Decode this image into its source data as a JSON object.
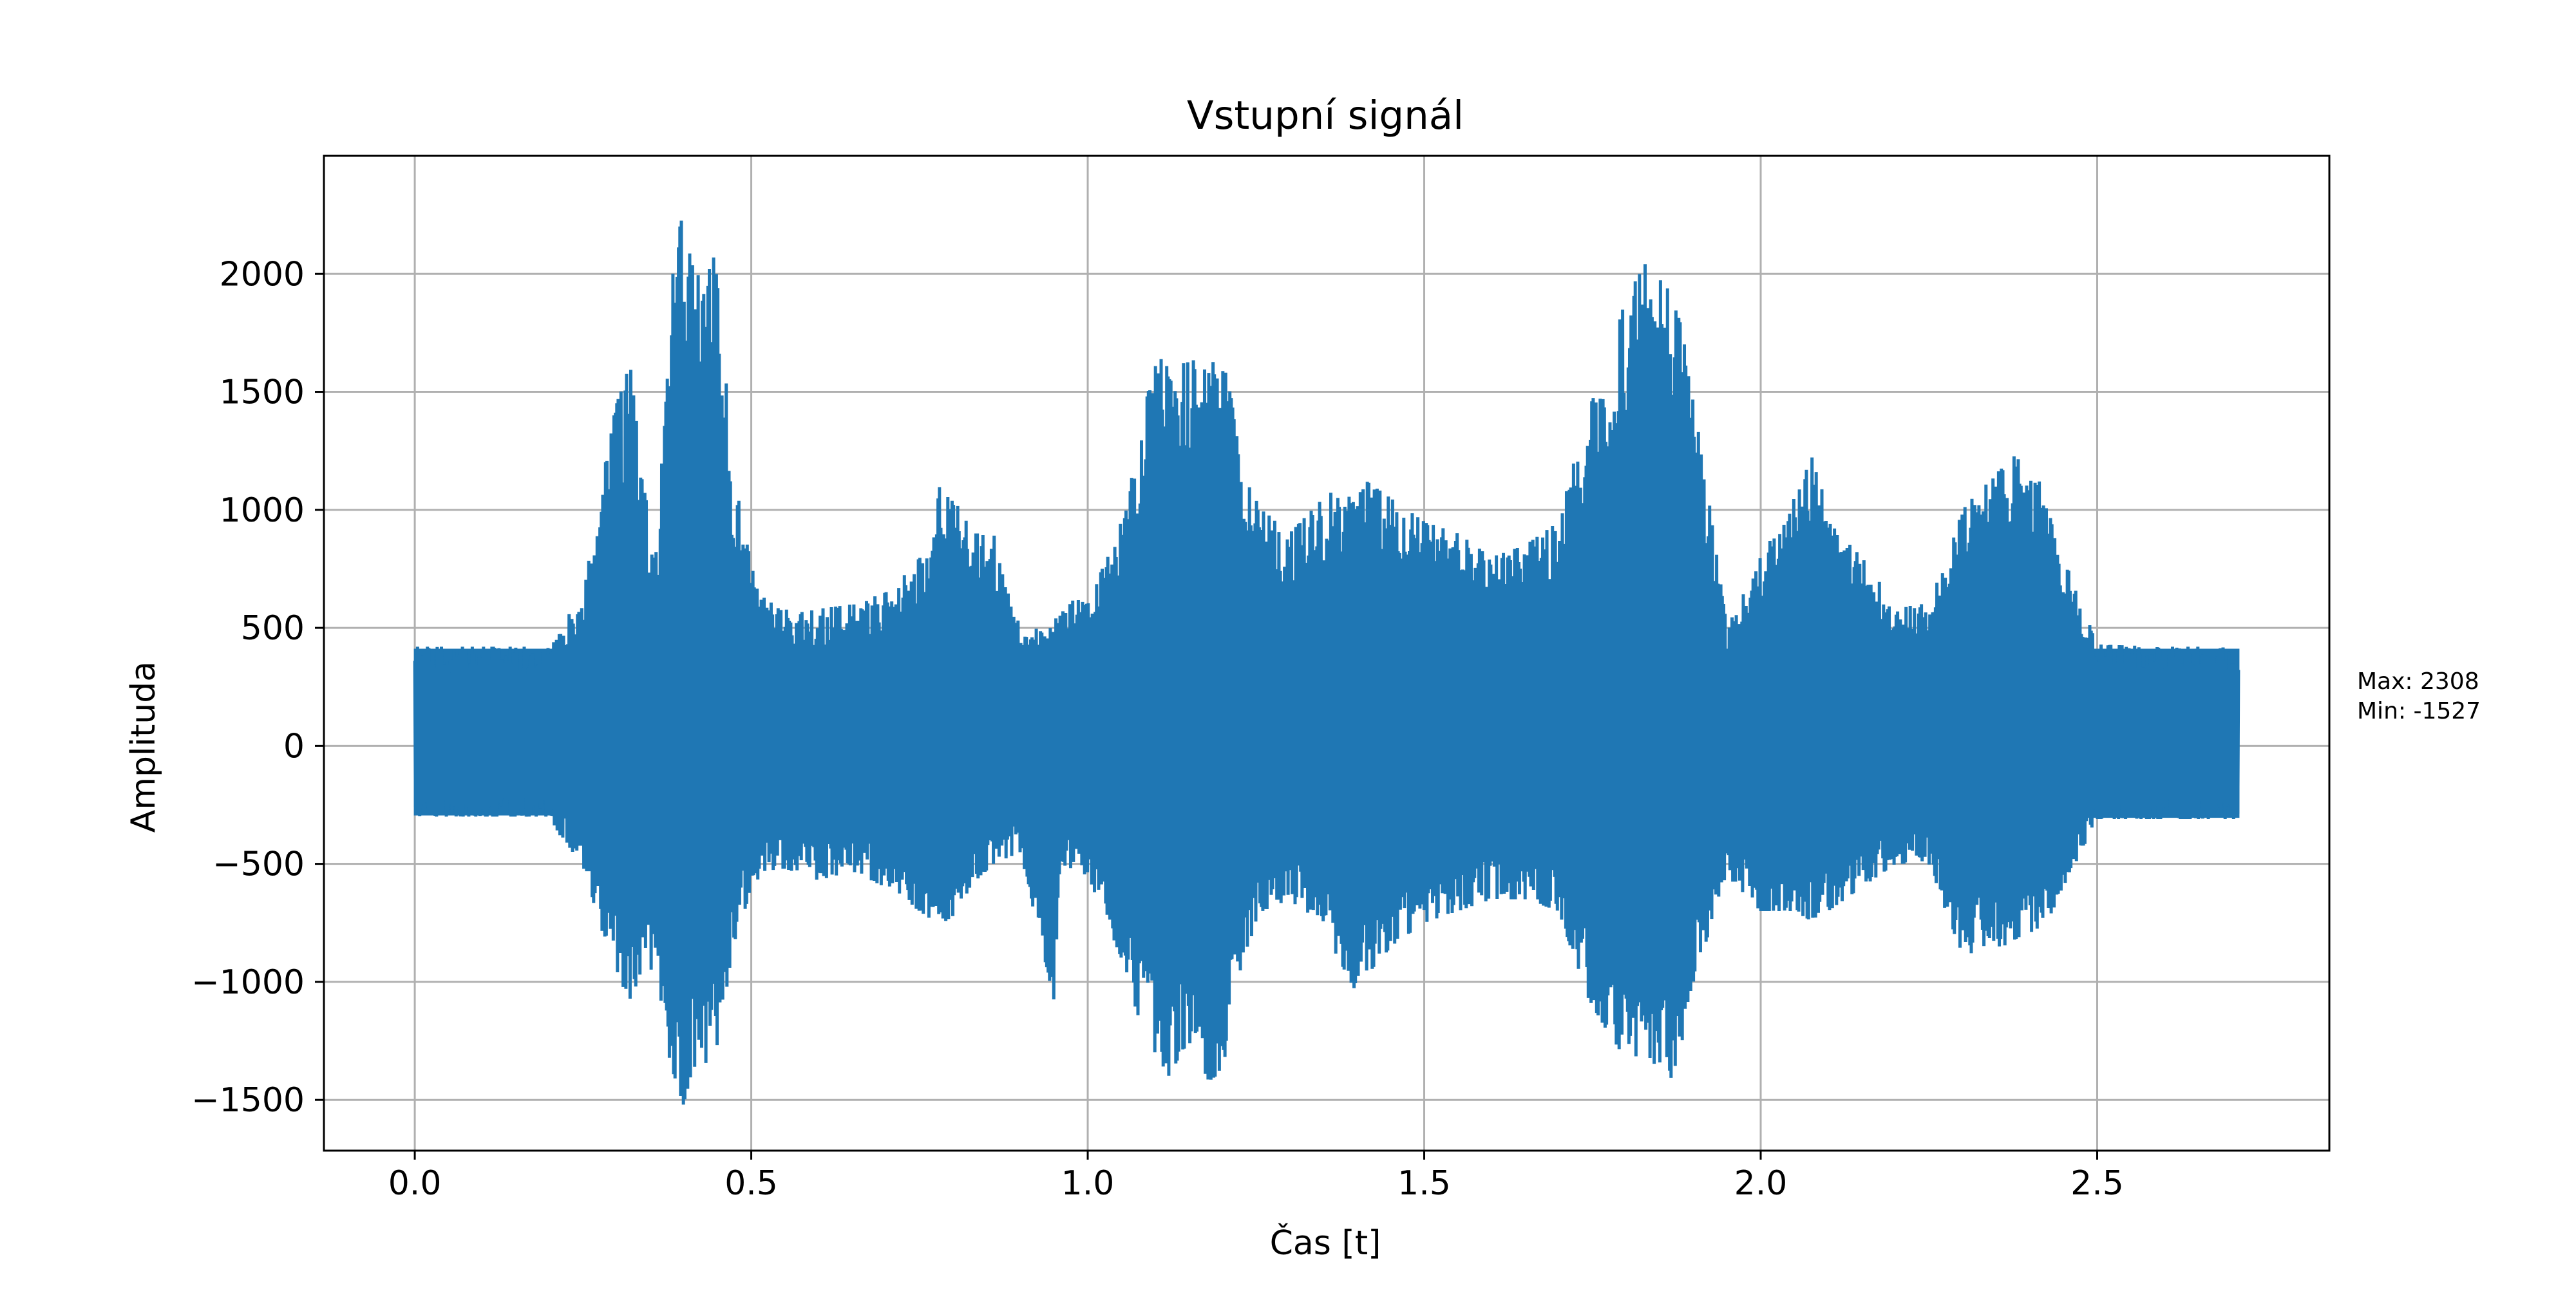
{
  "chart_data": {
    "type": "line",
    "title": "Vstupní signál",
    "xlabel": "Čas [t]",
    "ylabel": "Amplituda",
    "xlim": [
      -0.135,
      2.845
    ],
    "ylim": [
      -1715,
      2500
    ],
    "xticks": [
      0.0,
      0.5,
      1.0,
      1.5,
      2.0,
      2.5
    ],
    "xtick_labels": [
      "0.0",
      "0.5",
      "1.0",
      "1.5",
      "2.0",
      "2.5"
    ],
    "yticks": [
      -1500,
      -1000,
      -500,
      0,
      500,
      1000,
      1500,
      2000
    ],
    "ytick_labels": [
      "−1500",
      "−1000",
      "−500",
      "0",
      "500",
      "1000",
      "1500",
      "2000"
    ],
    "grid": true,
    "line_color": "#1f77b4",
    "series": [
      {
        "x_range": [
          0.0,
          2.71
        ],
        "envelope": {
          "t": [
            0.0,
            0.2,
            0.22,
            0.25,
            0.28,
            0.3,
            0.32,
            0.34,
            0.36,
            0.38,
            0.4,
            0.41,
            0.43,
            0.45,
            0.47,
            0.5,
            0.52,
            0.55,
            0.6,
            0.65,
            0.7,
            0.75,
            0.78,
            0.8,
            0.83,
            0.86,
            0.9,
            0.95,
            0.96,
            1.0,
            1.05,
            1.08,
            1.1,
            1.12,
            1.15,
            1.18,
            1.2,
            1.23,
            1.26,
            1.3,
            1.35,
            1.4,
            1.45,
            1.5,
            1.55,
            1.6,
            1.65,
            1.7,
            1.74,
            1.77,
            1.8,
            1.83,
            1.86,
            1.88,
            1.9,
            1.95,
            2.0,
            2.05,
            2.08,
            2.1,
            2.15,
            2.2,
            2.25,
            2.3,
            2.33,
            2.36,
            2.39,
            2.42,
            2.45,
            2.5,
            2.6,
            2.71
          ],
          "max": [
            420,
            420,
            530,
            620,
            1200,
            1450,
            1620,
            1100,
            800,
            1950,
            2308,
            2050,
            1950,
            2130,
            1200,
            780,
            620,
            580,
            580,
            600,
            650,
            800,
            1100,
            1050,
            900,
            900,
            500,
            500,
            650,
            600,
            950,
            1350,
            1670,
            1600,
            1650,
            1580,
            1730,
            1150,
            1000,
            900,
            1050,
            1150,
            1050,
            950,
            900,
            800,
            850,
            950,
            1400,
            1600,
            1900,
            2050,
            1950,
            1800,
            1500,
            500,
            800,
            1050,
            1250,
            950,
            800,
            600,
            600,
            1000,
            1100,
            1260,
            1200,
            1100,
            800,
            430,
            420,
            420
          ],
          "min": [
            -300,
            -300,
            -400,
            -520,
            -800,
            -950,
            -1100,
            -920,
            -1000,
            -1350,
            -1527,
            -1400,
            -1350,
            -1300,
            -900,
            -600,
            -530,
            -520,
            -570,
            -530,
            -600,
            -700,
            -760,
            -720,
            -580,
            -500,
            -450,
            -1080,
            -500,
            -550,
            -900,
            -1200,
            -1300,
            -1400,
            -1250,
            -1420,
            -1380,
            -900,
            -700,
            -650,
            -780,
            -1050,
            -850,
            -750,
            -700,
            -650,
            -650,
            -700,
            -1050,
            -1200,
            -1330,
            -1300,
            -1420,
            -1380,
            -1000,
            -550,
            -700,
            -700,
            -750,
            -700,
            -600,
            -500,
            -500,
            -900,
            -850,
            -850,
            -800,
            -780,
            -600,
            -310,
            -310,
            -310
          ]
        }
      }
    ]
  },
  "annotation": {
    "max_label": "Max: 2308",
    "min_label": "Min: -1527",
    "color": "#0000ff"
  }
}
